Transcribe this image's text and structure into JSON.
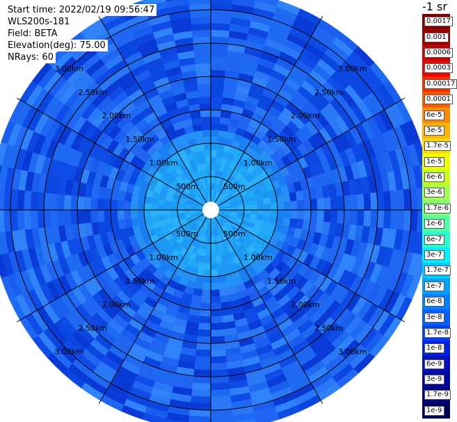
{
  "info": {
    "start_time": "Start time: 2022/02/19 09:56:47",
    "instrument": "WLS200s-181",
    "field": "Field: BETA",
    "elevation": "Elevation(deg): 75.00",
    "nrays": "NRays: 60"
  },
  "colorbar": {
    "unit": "-1 sr",
    "entries": [
      {
        "label": "0.0017",
        "color": "#7f0000"
      },
      {
        "label": "0.001",
        "color": "#a00000"
      },
      {
        "label": "0.0006",
        "color": "#c80000"
      },
      {
        "label": "0.0003",
        "color": "#f00000"
      },
      {
        "label": "0.00017",
        "color": "#ff2a00"
      },
      {
        "label": "0.0001",
        "color": "#ff5a00"
      },
      {
        "label": "6e-5",
        "color": "#ff8a00"
      },
      {
        "label": "3e-5",
        "color": "#ffb400"
      },
      {
        "label": "1.7e-5",
        "color": "#ffdc00"
      },
      {
        "label": "1e-5",
        "color": "#f0ff00"
      },
      {
        "label": "6e-6",
        "color": "#c8ff1e"
      },
      {
        "label": "3e-6",
        "color": "#a0ff50"
      },
      {
        "label": "1.7e-6",
        "color": "#78ff78"
      },
      {
        "label": "1e-6",
        "color": "#50ffa0"
      },
      {
        "label": "6e-7",
        "color": "#28ffd0"
      },
      {
        "label": "3e-7",
        "color": "#00f0ff"
      },
      {
        "label": "1.7e-7",
        "color": "#00c8ff"
      },
      {
        "label": "1e-7",
        "color": "#00a0ff"
      },
      {
        "label": "6e-8",
        "color": "#0080ff"
      },
      {
        "label": "3e-8",
        "color": "#0060ff"
      },
      {
        "label": "1.7e-8",
        "color": "#0040f0"
      },
      {
        "label": "1e-8",
        "color": "#0020e0"
      },
      {
        "label": "6e-9",
        "color": "#0010c0"
      },
      {
        "label": "3e-9",
        "color": "#0008a0"
      },
      {
        "label": "1.7e-9",
        "color": "#000480"
      },
      {
        "label": "1e-9",
        "color": "#00005a"
      }
    ]
  },
  "chart_data": {
    "type": "heatmap",
    "projection": "polar (PPI scan)",
    "field": "BETA",
    "elevation_deg": 75.0,
    "n_rays": 60,
    "range_rings": [
      {
        "label": "500m",
        "km": 0.5
      },
      {
        "label": "1.00km",
        "km": 1.0
      },
      {
        "label": "1.50km",
        "km": 1.5
      },
      {
        "label": "2.00km",
        "km": 2.0
      },
      {
        "label": "2.50km",
        "km": 2.5
      },
      {
        "label": "3.00km",
        "km": 3.0
      }
    ],
    "max_range_km": 3.3,
    "spokes_deg": [
      0,
      30,
      60,
      90,
      120,
      150,
      180,
      210,
      240,
      270,
      300,
      330
    ],
    "radial_profile": [
      {
        "range_km": 0.1,
        "value": 1.7e-07
      },
      {
        "range_km": 0.5,
        "value": 1.7e-07
      },
      {
        "range_km": 0.9,
        "value": 1e-07
      },
      {
        "range_km": 1.2,
        "value": 6e-08
      },
      {
        "range_km": 1.5,
        "value": 3e-08
      },
      {
        "range_km": 2.0,
        "value": 3e-08
      },
      {
        "range_km": 3.3,
        "value": 3e-08
      }
    ],
    "colorscale": "log, 1e-9 to 0.0017 sr^-1"
  }
}
